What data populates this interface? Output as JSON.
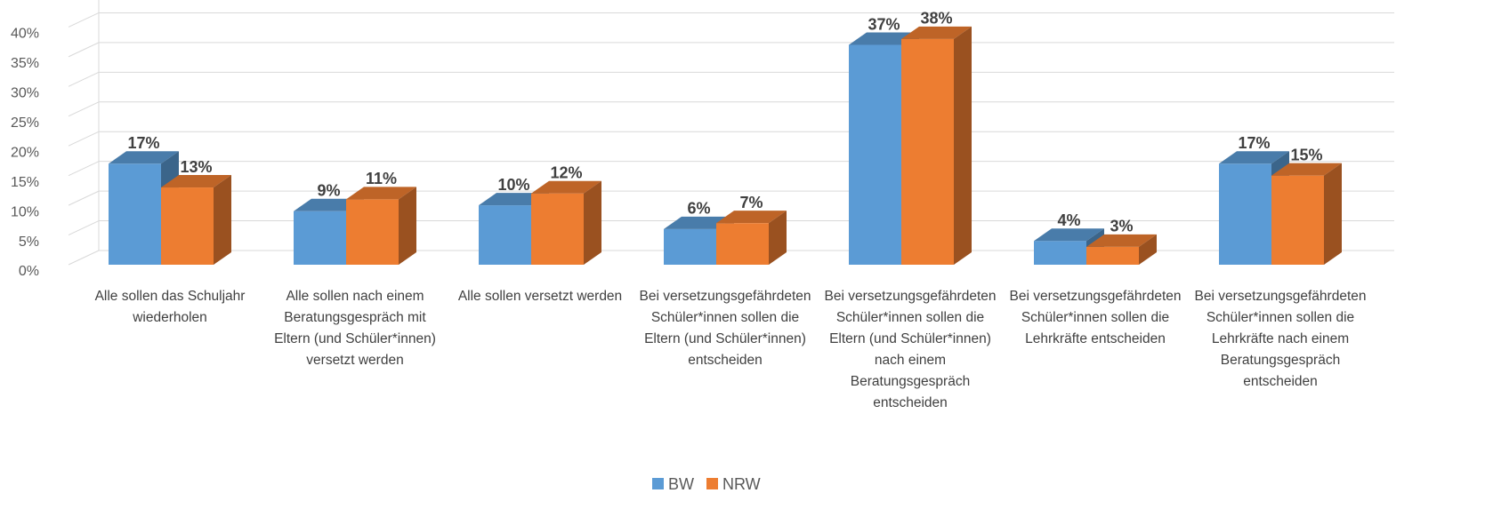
{
  "chart_data": {
    "type": "bar3d",
    "categories": [
      "Alle sollen das Schuljahr wiederholen",
      "Alle sollen nach einem Beratungsgespräch mit Eltern (und Schüler*innen) versetzt werden",
      "Alle sollen versetzt werden",
      "Bei versetzungsgefährdeten Schüler*innen sollen die Eltern (und Schüler*innen) entscheiden",
      "Bei versetzungsgefährdeten Schüler*innen sollen die Eltern (und Schüler*innen) nach einem Beratungsgespräch entscheiden",
      "Bei versetzungsgefährdeten Schüler*innen sollen die Lehrkräfte  entscheiden",
      "Bei versetzungsgefährdeten Schüler*innen sollen die Lehrkräfte nach einem Beratungsgespräch entscheiden"
    ],
    "series": [
      {
        "name": "BW",
        "color": "#5b9bd5",
        "values": [
          17,
          9,
          10,
          6,
          37,
          4,
          17
        ],
        "value_labels": [
          "17%",
          "9%",
          "10%",
          "6%",
          "37%",
          "4%",
          "17%"
        ]
      },
      {
        "name": "NRW",
        "color": "#ed7d31",
        "values": [
          13,
          11,
          12,
          7,
          38,
          3,
          15
        ],
        "value_labels": [
          "13%",
          "11%",
          "12%",
          "7%",
          "38%",
          "3%",
          "15%"
        ]
      }
    ],
    "ylim": [
      0,
      45
    ],
    "yticks": [
      {
        "value": 0,
        "label": "0%"
      },
      {
        "value": 5,
        "label": "5%"
      },
      {
        "value": 10,
        "label": "10%"
      },
      {
        "value": 15,
        "label": "15%"
      },
      {
        "value": 20,
        "label": "20%"
      },
      {
        "value": 25,
        "label": "25%"
      },
      {
        "value": 30,
        "label": "30%"
      },
      {
        "value": 35,
        "label": "35%"
      },
      {
        "value": 40,
        "label": "40%"
      }
    ],
    "grid": true,
    "legend": "bottom"
  }
}
